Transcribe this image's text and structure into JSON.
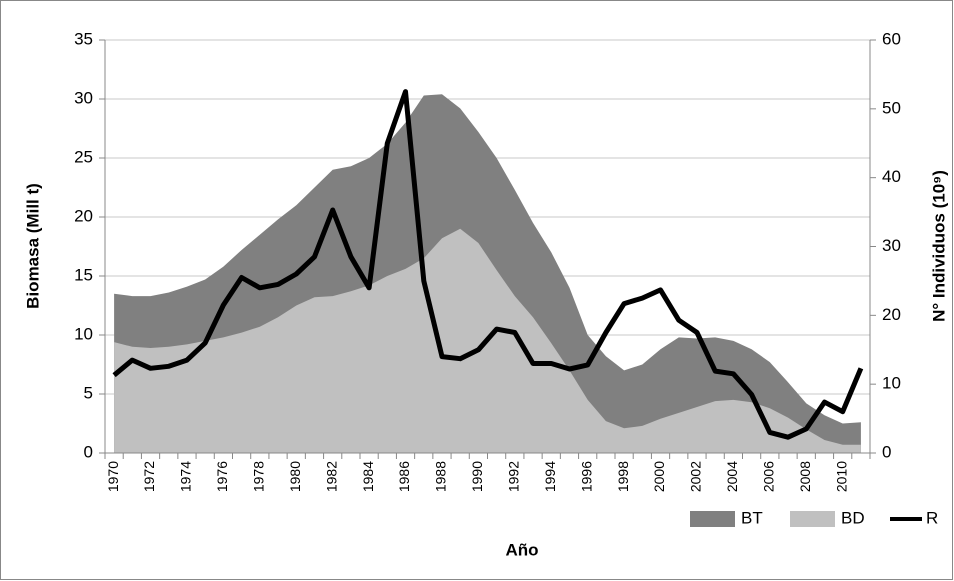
{
  "chart_data": {
    "type": "area-line",
    "x_label": "Año",
    "y_label": "Biomasa (Mill t)",
    "y2_label": "N° Individuos (10⁹)",
    "categories": [
      1970,
      null,
      1972,
      null,
      1974,
      null,
      1976,
      null,
      1978,
      null,
      1980,
      null,
      1982,
      null,
      1984,
      null,
      1986,
      null,
      1988,
      null,
      1990,
      null,
      1992,
      null,
      1994,
      null,
      1996,
      null,
      1998,
      null,
      2000,
      null,
      2002,
      null,
      2004,
      null,
      2006,
      null,
      2008,
      null,
      2010,
      null
    ],
    "series": [
      {
        "name": "BT",
        "color": "#808080",
        "kind": "area",
        "values": [
          13.5,
          13.3,
          13.3,
          13.6,
          14.1,
          14.7,
          15.8,
          17.2,
          18.5,
          19.8,
          21.0,
          22.5,
          24.0,
          24.3,
          25.0,
          26.2,
          28.0,
          30.3,
          30.4,
          29.2,
          27.2,
          25.0,
          22.3,
          19.5,
          17.0,
          14.0,
          10.0,
          8.2,
          7.0,
          7.5,
          8.8,
          9.8,
          9.7,
          9.8,
          9.5,
          8.8,
          7.7,
          6.0,
          4.2,
          3.2,
          2.5,
          2.6
        ]
      },
      {
        "name": "BD",
        "color": "#c0c0c0",
        "kind": "area",
        "values": [
          9.4,
          9.0,
          8.9,
          9.0,
          9.2,
          9.5,
          9.8,
          10.2,
          10.7,
          11.5,
          12.5,
          13.2,
          13.3,
          13.7,
          14.2,
          15.0,
          15.6,
          16.5,
          18.2,
          19.0,
          17.8,
          15.5,
          13.3,
          11.5,
          9.3,
          7.0,
          4.5,
          2.7,
          2.1,
          2.3,
          2.9,
          3.4,
          3.9,
          4.4,
          4.5,
          4.3,
          3.8,
          3.0,
          2.0,
          1.1,
          0.7,
          0.7
        ]
      },
      {
        "name": "R",
        "color": "#000000",
        "kind": "line",
        "axis": "y2",
        "values": [
          11.3,
          13.5,
          12.3,
          12.6,
          13.5,
          16.0,
          21.5,
          25.5,
          24.0,
          24.5,
          26.0,
          28.5,
          35.3,
          28.5,
          24.0,
          45.0,
          52.5,
          25.0,
          14.0,
          13.7,
          15.0,
          18.0,
          17.5,
          13.0,
          13.0,
          12.2,
          12.8,
          17.5,
          21.7,
          22.5,
          23.7,
          19.3,
          17.5,
          11.9,
          11.5,
          8.5,
          3.0,
          2.3,
          3.5,
          7.4,
          6.0,
          12.3
        ]
      }
    ],
    "ylim": [
      0,
      35
    ],
    "yticks": [
      0,
      5,
      10,
      15,
      20,
      25,
      30,
      35
    ],
    "y2lim": [
      0,
      60
    ],
    "y2ticks": [
      0,
      10,
      20,
      30,
      40,
      50,
      60
    ],
    "grid": true,
    "legend": "bottom-right"
  }
}
